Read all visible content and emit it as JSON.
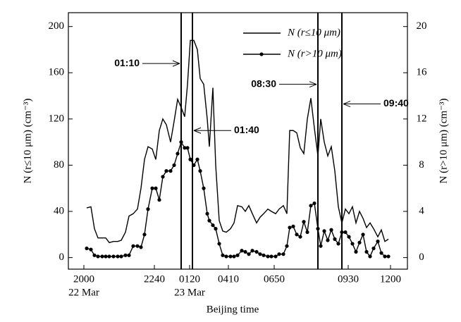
{
  "chart_data": {
    "type": "line",
    "xlabel": "Beijing time",
    "ylabel": "N (r≤10 μm) (cm⁻³)",
    "y2label": "N (r>10 μm) (cm⁻³)",
    "xlim": [
      -4.4,
      91.8
    ],
    "xticks": [
      {
        "value": 0,
        "label": "2000"
      },
      {
        "value": 20,
        "label": "2240"
      },
      {
        "value": 30,
        "label": "0120"
      },
      {
        "value": 41,
        "label": "0410"
      },
      {
        "value": 54,
        "label": "0650"
      },
      {
        "value": 75,
        "label": "0930"
      },
      {
        "value": 87,
        "label": "1200"
      }
    ],
    "date_labels": [
      {
        "x": 0,
        "label": "22 Mar"
      },
      {
        "x": 30,
        "label": "23 Mar"
      }
    ],
    "ylim": [
      -10,
      212
    ],
    "yticks": [
      0,
      40,
      80,
      120,
      160,
      200
    ],
    "y2lim": [
      -1,
      21.2
    ],
    "y2ticks": [
      0,
      4,
      8,
      12,
      16,
      20
    ],
    "legend": "upper right",
    "annotations": [
      {
        "text": "01:10",
        "x": 27.6,
        "y": 168,
        "side": "left"
      },
      {
        "text": "01:40",
        "x": 30.8,
        "y": 110,
        "side": "right"
      },
      {
        "text": "08:30",
        "x": 66.4,
        "y": 150,
        "side": "left"
      },
      {
        "text": "09:40",
        "x": 73.2,
        "y": 133,
        "side": "right"
      }
    ],
    "series": [
      {
        "name": "N (r≤10 μm)",
        "color": "#000000",
        "axis": "y",
        "markers": false,
        "x": [
          0.8,
          2,
          3,
          4,
          5.2,
          6.2,
          7.2,
          8.4,
          9.6,
          10.6,
          11.8,
          12.8,
          14,
          15.2,
          16.2,
          17.2,
          18.2,
          19.4,
          20.4,
          21.4,
          22.4,
          23.4,
          24.6,
          25.6,
          26.6,
          27.6,
          28.6,
          29.4,
          30.2,
          31.2,
          32.2,
          33,
          34,
          35,
          35.6,
          36.6,
          37.4,
          38.4,
          39.4,
          40.4,
          41.6,
          42.6,
          43.6,
          44.8,
          45.8,
          46.8,
          47.8,
          49,
          50,
          51,
          52.2,
          53.2,
          54.4,
          55.4,
          56.6,
          57.6,
          58.4,
          59.4,
          60.4,
          61.4,
          62.4,
          63.4,
          64.4,
          65.4,
          66.4,
          67.2,
          68.2,
          69.2,
          70.2,
          71.2,
          72.2,
          73.2,
          74.2,
          75.2,
          76.2,
          77.2,
          78.2,
          79.2,
          80.2,
          81.2,
          82.2,
          83.4,
          84.4,
          85.4,
          86.4
        ],
        "values": [
          43,
          44,
          25,
          17,
          17,
          17,
          13,
          14,
          14,
          15,
          22,
          36,
          38,
          42,
          60,
          85,
          96,
          94,
          85,
          110,
          120,
          115,
          100,
          118,
          137,
          130,
          122,
          150,
          188,
          188,
          180,
          155,
          150,
          120,
          96,
          147,
          80,
          32,
          23,
          22,
          25,
          30,
          45,
          44,
          40,
          45,
          38,
          30,
          35,
          38,
          42,
          40,
          38,
          42,
          45,
          38,
          110,
          110,
          108,
          95,
          90,
          120,
          138,
          112,
          88,
          120,
          100,
          88,
          96,
          75,
          44,
          30,
          42,
          38,
          44,
          30,
          40,
          34,
          26,
          30,
          25,
          18,
          24,
          14,
          16
        ]
      },
      {
        "name": "N (r>10 μm)",
        "color": "#000000",
        "axis": "y2",
        "markers": true,
        "x": [
          0.8,
          2,
          3,
          4,
          5.2,
          6.2,
          7.2,
          8.4,
          9.6,
          10.6,
          11.8,
          12.8,
          14,
          15.2,
          16.2,
          17.2,
          18.2,
          19.4,
          20.4,
          21.4,
          22.4,
          23.4,
          24.6,
          25.6,
          26.6,
          27.6,
          28.6,
          29.4,
          30.2,
          31.2,
          32.2,
          33,
          34,
          35,
          35.6,
          36.6,
          37.4,
          38.4,
          39.4,
          40.4,
          41.6,
          42.6,
          43.6,
          44.8,
          45.8,
          46.8,
          47.8,
          49,
          50,
          51,
          52.2,
          53.2,
          54.4,
          55.4,
          56.6,
          57.6,
          58.4,
          59.4,
          60.4,
          61.4,
          62.4,
          63.4,
          64.4,
          65.4,
          66.4,
          67.2,
          68.2,
          69.2,
          70.2,
          71.2,
          72.2,
          73.2,
          74.2,
          75.2,
          76.2,
          77.2,
          78.2,
          79.2,
          80.2,
          81.2,
          82.2,
          83.4,
          84.4,
          85.4,
          86.4
        ],
        "values": [
          0.8,
          0.7,
          0.2,
          0.1,
          0.1,
          0.1,
          0.1,
          0.1,
          0.1,
          0.1,
          0.2,
          0.2,
          1,
          1,
          0.9,
          2,
          4.2,
          6,
          6,
          5,
          7,
          7.5,
          7.5,
          8,
          9,
          10,
          9.5,
          9.5,
          8.5,
          8,
          8.5,
          7.5,
          6,
          3.8,
          3.2,
          2.8,
          2.5,
          1.2,
          0.2,
          0.1,
          0.1,
          0.1,
          0.2,
          0.6,
          0.5,
          0.3,
          0.6,
          0.5,
          0.3,
          0.2,
          0.1,
          0.1,
          0.1,
          0.3,
          0.3,
          1,
          2.6,
          2.7,
          2,
          1.8,
          3.1,
          2.2,
          4.5,
          4.7,
          2.5,
          1,
          2.3,
          1.5,
          2.4,
          1.6,
          1.2,
          2.2,
          2.2,
          1.8,
          1.2,
          0.5,
          1.3,
          2,
          0.5,
          0.1,
          0.8,
          1.4,
          0.4,
          0.1,
          0.1
        ]
      }
    ]
  }
}
